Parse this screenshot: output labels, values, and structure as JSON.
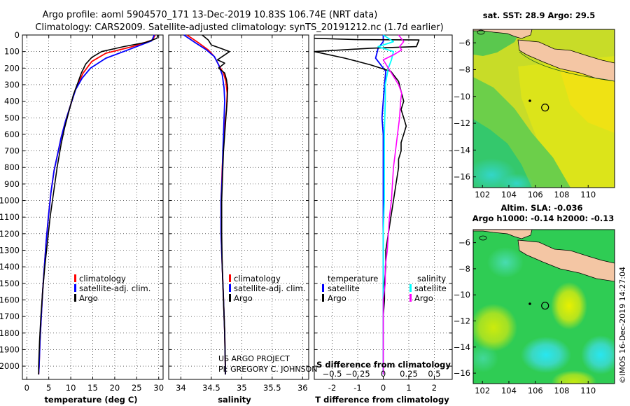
{
  "title_line1": "Argo profile: aoml 5904570_171 13-Dec-2019 10.83S 106.74E (NRT data)",
  "title_line2": "Climatology: CARS2009. Satellite-adjusted climatology: synTS_20191212.nc (1.7d earlier)",
  "colors": {
    "climatology": "#ff0000",
    "satellite": "#0000ff",
    "argo": "#000000",
    "sat_salinity": "#00ffff",
    "argo_salinity": "#ff00ff"
  },
  "credit_line1": "US ARGO PROJECT",
  "credit_line2": "PI: GREGORY C. JOHNSON",
  "imos_stamp": "©IMOS 16-Dec-2019 14:27:04",
  "chart_data": [
    {
      "type": "line",
      "id": "temperature",
      "xlabel": "temperature (deg C)",
      "xlim": [
        -1,
        31
      ],
      "xticks": [
        0,
        5,
        10,
        15,
        20,
        25,
        30
      ],
      "ylim": [
        0,
        2080
      ],
      "yticks": [
        0,
        100,
        200,
        300,
        400,
        500,
        600,
        700,
        800,
        900,
        1000,
        1100,
        1200,
        1300,
        1400,
        1500,
        1600,
        1700,
        1800,
        1900,
        2000
      ],
      "grid": true,
      "legend": {
        "placement": "lower-center",
        "entries": [
          "climatology",
          "satellite-adj. clim.",
          "Argo"
        ]
      },
      "series": [
        {
          "name": "climatology",
          "points": [
            [
              29.2,
              0
            ],
            [
              28.6,
              30
            ],
            [
              24,
              70
            ],
            [
              18,
              110
            ],
            [
              14.8,
              160
            ],
            [
              12.8,
              230
            ],
            [
              11.2,
              320
            ],
            [
              10,
              420
            ],
            [
              8.8,
              520
            ],
            [
              7.8,
              620
            ],
            [
              7,
              720
            ],
            [
              6.2,
              820
            ],
            [
              5.5,
              950
            ],
            [
              4.9,
              1100
            ],
            [
              4.4,
              1250
            ],
            [
              4,
              1400
            ],
            [
              3.6,
              1550
            ],
            [
              3.3,
              1700
            ],
            [
              3,
              1850
            ],
            [
              2.8,
              2000
            ],
            [
              2.7,
              2050
            ]
          ]
        },
        {
          "name": "satellite-adj. clim.",
          "points": [
            [
              29,
              0
            ],
            [
              28.4,
              35
            ],
            [
              23,
              90
            ],
            [
              18,
              140
            ],
            [
              14.5,
              200
            ],
            [
              12.6,
              260
            ],
            [
              11.1,
              330
            ],
            [
              10,
              420
            ],
            [
              8.8,
              520
            ],
            [
              7.8,
              620
            ],
            [
              7,
              720
            ],
            [
              6.2,
              820
            ],
            [
              5.5,
              950
            ],
            [
              4.9,
              1100
            ],
            [
              4.4,
              1250
            ],
            [
              4,
              1400
            ],
            [
              3.6,
              1550
            ],
            [
              3.3,
              1700
            ],
            [
              3,
              1850
            ],
            [
              2.8,
              2000
            ],
            [
              2.7,
              2050
            ]
          ]
        },
        {
          "name": "Argo",
          "points": [
            [
              29.8,
              0
            ],
            [
              29.6,
              20
            ],
            [
              27,
              45
            ],
            [
              22,
              70
            ],
            [
              17,
              100
            ],
            [
              14.8,
              135
            ],
            [
              13.4,
              175
            ],
            [
              12.4,
              230
            ],
            [
              11.6,
              290
            ],
            [
              10.6,
              360
            ],
            [
              10,
              420
            ],
            [
              9.4,
              480
            ],
            [
              8.6,
              560
            ],
            [
              7.8,
              660
            ],
            [
              6.9,
              800
            ],
            [
              6.1,
              950
            ],
            [
              5.3,
              1100
            ],
            [
              4.7,
              1250
            ],
            [
              4.1,
              1400
            ],
            [
              3.6,
              1550
            ],
            [
              3.2,
              1700
            ],
            [
              2.9,
              1850
            ],
            [
              2.7,
              2000
            ],
            [
              2.7,
              2050
            ]
          ]
        }
      ]
    },
    {
      "type": "line",
      "id": "salinity",
      "xlabel": "salinity",
      "xlim": [
        33.8,
        36.1
      ],
      "xticks": [
        34,
        34.5,
        35,
        35.5,
        36
      ],
      "xticklabels": [
        "34",
        "34.5",
        "35",
        "35.5",
        "36"
      ],
      "ylim": [
        0,
        2080
      ],
      "grid": true,
      "legend": {
        "placement": "lower-center",
        "entries": [
          "climatology",
          "satellite-adj. clim.",
          "Argo"
        ]
      },
      "series": [
        {
          "name": "climatology",
          "points": [
            [
              34.1,
              0
            ],
            [
              34.3,
              50
            ],
            [
              34.45,
              90
            ],
            [
              34.55,
              130
            ],
            [
              34.62,
              180
            ],
            [
              34.7,
              230
            ],
            [
              34.74,
              280
            ],
            [
              34.76,
              350
            ],
            [
              34.75,
              450
            ],
            [
              34.72,
              550
            ],
            [
              34.7,
              650
            ],
            [
              34.68,
              800
            ],
            [
              34.66,
              1000
            ],
            [
              34.66,
              1200
            ],
            [
              34.68,
              1400
            ],
            [
              34.7,
              1600
            ],
            [
              34.72,
              1800
            ],
            [
              34.73,
              2000
            ],
            [
              34.73,
              2050
            ]
          ]
        },
        {
          "name": "satellite-adj. clim.",
          "points": [
            [
              34.05,
              0
            ],
            [
              34.25,
              50
            ],
            [
              34.42,
              90
            ],
            [
              34.55,
              130
            ],
            [
              34.62,
              180
            ],
            [
              34.68,
              240
            ],
            [
              34.71,
              320
            ],
            [
              34.72,
              400
            ],
            [
              34.71,
              500
            ],
            [
              34.7,
              600
            ],
            [
              34.69,
              700
            ],
            [
              34.68,
              850
            ],
            [
              34.66,
              1000
            ],
            [
              34.66,
              1200
            ],
            [
              34.68,
              1400
            ],
            [
              34.7,
              1600
            ],
            [
              34.72,
              1800
            ],
            [
              34.73,
              2000
            ],
            [
              34.73,
              2050
            ]
          ]
        },
        {
          "name": "Argo",
          "points": [
            [
              34.35,
              0
            ],
            [
              34.45,
              30
            ],
            [
              34.5,
              60
            ],
            [
              34.65,
              80
            ],
            [
              34.8,
              100
            ],
            [
              34.68,
              130
            ],
            [
              34.6,
              150
            ],
            [
              34.72,
              170
            ],
            [
              34.62,
              200
            ],
            [
              34.72,
              230
            ],
            [
              34.75,
              270
            ],
            [
              34.77,
              320
            ],
            [
              34.76,
              400
            ],
            [
              34.74,
              500
            ],
            [
              34.72,
              600
            ],
            [
              34.7,
              700
            ],
            [
              34.69,
              800
            ],
            [
              34.67,
              1000
            ],
            [
              34.67,
              1200
            ],
            [
              34.68,
              1400
            ],
            [
              34.7,
              1600
            ],
            [
              34.72,
              1800
            ],
            [
              34.73,
              2000
            ],
            [
              34.73,
              2050
            ]
          ]
        }
      ]
    },
    {
      "type": "line",
      "id": "differences",
      "xlabel": "T difference from climatology",
      "xlim": [
        -2.7,
        2.7
      ],
      "xticks": [
        -2,
        -1,
        0,
        1,
        2
      ],
      "ylim": [
        0,
        2080
      ],
      "grid": true,
      "top_axis_label": "S difference from climatology",
      "top_ticks": [
        -0.5,
        -0.25,
        0,
        0.25,
        0.5
      ],
      "top_ticklabels": [
        "−0.5",
        "−0.25",
        "0",
        "0.25",
        "0.5"
      ],
      "top_scale": 4,
      "legend": {
        "placement": "lower-center",
        "left_title": "temperature",
        "right_title": "salinity",
        "left_entries": [
          "satellite",
          "Argo"
        ],
        "right_entries": [
          "satellite",
          "Argo"
        ]
      },
      "series": [
        {
          "name": "satellite",
          "points": [
            [
              0,
              0
            ],
            [
              0,
              40
            ],
            [
              -0.2,
              80
            ],
            [
              -0.3,
              140
            ],
            [
              0.1,
              220
            ],
            [
              0.05,
              300
            ],
            [
              0,
              400
            ],
            [
              -0.05,
              500
            ],
            [
              0,
              600
            ],
            [
              0,
              700
            ],
            [
              0,
              900
            ],
            [
              0,
              1100
            ],
            [
              0,
              1300
            ],
            [
              0,
              1500
            ],
            [
              0,
              1700
            ],
            [
              0,
              1900
            ],
            [
              0,
              2050
            ]
          ]
        },
        {
          "name": "Argo",
          "points": [
            [
              -2.7,
              20
            ],
            [
              -1,
              28
            ],
            [
              1.4,
              30
            ],
            [
              1.3,
              70
            ],
            [
              -0.5,
              80
            ],
            [
              -2.7,
              100
            ],
            [
              -1.5,
              140
            ],
            [
              -0.5,
              180
            ],
            [
              0.3,
              220
            ],
            [
              0.6,
              280
            ],
            [
              0.7,
              340
            ],
            [
              0.8,
              400
            ],
            [
              0.7,
              450
            ],
            [
              0.8,
              500
            ],
            [
              0.9,
              550
            ],
            [
              0.8,
              600
            ],
            [
              0.7,
              650
            ],
            [
              0.7,
              700
            ],
            [
              0.6,
              750
            ],
            [
              0.6,
              800
            ],
            [
              0.5,
              900
            ],
            [
              0.4,
              1000
            ],
            [
              0.3,
              1100
            ],
            [
              0.2,
              1200
            ],
            [
              0.1,
              1300
            ],
            [
              0.1,
              1400
            ],
            [
              0.05,
              1500
            ],
            [
              0.05,
              1600
            ],
            [
              0,
              1700
            ],
            [
              0,
              1800
            ],
            [
              0,
              1900
            ],
            [
              0,
              2000
            ],
            [
              0,
              2050
            ]
          ]
        },
        {
          "name": "satellite",
          "axis": "salinity",
          "points": [
            [
              0,
              0
            ],
            [
              0.1,
              40
            ],
            [
              -0.05,
              70
            ],
            [
              0.1,
              100
            ],
            [
              0.08,
              150
            ],
            [
              0.05,
              200
            ],
            [
              0.02,
              300
            ],
            [
              0.02,
              400
            ],
            [
              0.01,
              600
            ],
            [
              0.01,
              800
            ],
            [
              0.01,
              1000
            ],
            [
              0,
              1200
            ],
            [
              0,
              1400
            ],
            [
              0,
              1600
            ],
            [
              0,
              1800
            ],
            [
              0,
              2000
            ],
            [
              0,
              2050
            ]
          ]
        },
        {
          "name": "Argo",
          "axis": "salinity",
          "points": [
            [
              0.15,
              0
            ],
            [
              0.2,
              40
            ],
            [
              0.16,
              70
            ],
            [
              0.18,
              90
            ],
            [
              0.1,
              120
            ],
            [
              0,
              150
            ],
            [
              0.05,
              200
            ],
            [
              0.1,
              250
            ],
            [
              0.15,
              300
            ],
            [
              0.18,
              350
            ],
            [
              0.17,
              400
            ],
            [
              0.16,
              500
            ],
            [
              0.14,
              600
            ],
            [
              0.12,
              700
            ],
            [
              0.1,
              800
            ],
            [
              0.09,
              900
            ],
            [
              0.08,
              1000
            ],
            [
              0.06,
              1100
            ],
            [
              0.05,
              1200
            ],
            [
              0.04,
              1300
            ],
            [
              0.02,
              1400
            ],
            [
              0.02,
              1500
            ],
            [
              0,
              1600
            ],
            [
              0,
              1700
            ],
            [
              0,
              1800
            ],
            [
              0,
              1900
            ],
            [
              0,
              2050
            ]
          ]
        }
      ]
    },
    {
      "type": "heatmap",
      "id": "sst-map",
      "title": "sat. SST: 28.9 Argo: 29.5",
      "xlim": [
        101.3,
        112
      ],
      "xticks": [
        102,
        104,
        106,
        108,
        110
      ],
      "ylim": [
        -16.8,
        -5
      ],
      "yticks": [
        -6,
        -8,
        -10,
        -12,
        -14,
        -16
      ],
      "marker": {
        "x": 106.74,
        "y": -10.83
      }
    },
    {
      "type": "heatmap",
      "id": "sla-map",
      "title": "Altim. SLA: -0.036",
      "subtitle": "Argo h1000: -0.14 h2000: -0.13",
      "xlim": [
        101.3,
        112
      ],
      "xticks": [
        102,
        104,
        106,
        108,
        110
      ],
      "ylim": [
        -16.8,
        -5
      ],
      "yticks": [
        -6,
        -8,
        -10,
        -12,
        -14,
        -16
      ],
      "marker": {
        "x": 106.74,
        "y": -10.83
      }
    }
  ]
}
